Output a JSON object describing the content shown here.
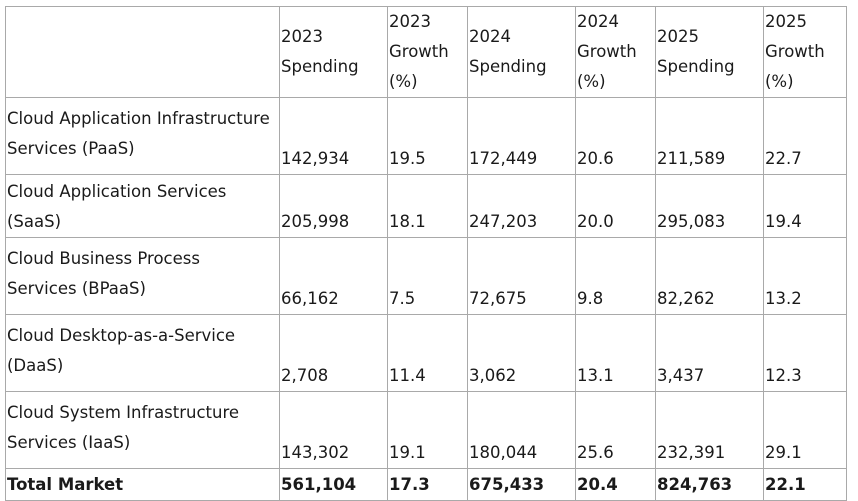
{
  "table": {
    "columns": [
      {
        "lines": [
          "2023",
          "Spending"
        ]
      },
      {
        "lines": [
          "2023",
          "Growth",
          "(%)"
        ]
      },
      {
        "lines": [
          "2024",
          "Spending"
        ]
      },
      {
        "lines": [
          "2024",
          "Growth",
          "(%)"
        ]
      },
      {
        "lines": [
          "2025",
          "Spending"
        ]
      },
      {
        "lines": [
          "2025",
          "Growth",
          "(%)"
        ]
      }
    ],
    "rows": [
      {
        "label_lines": [
          "Cloud Application Infrastructure",
          "Services (PaaS)"
        ],
        "values": [
          "142,934",
          "19.5",
          "172,449",
          "20.6",
          "211,589",
          "22.7"
        ]
      },
      {
        "label_lines": [
          "Cloud Application Services",
          "(SaaS)"
        ],
        "values": [
          "205,998",
          "18.1",
          "247,203",
          "20.0",
          "295,083",
          "19.4"
        ]
      },
      {
        "label_lines": [
          "Cloud Business Process",
          "Services (BPaaS)"
        ],
        "values": [
          "66,162",
          "7.5",
          "72,675",
          "9.8",
          "82,262",
          "13.2"
        ]
      },
      {
        "label_lines": [
          "Cloud Desktop-as-a-Service",
          "(DaaS)"
        ],
        "values": [
          "2,708",
          "11.4",
          "3,062",
          "13.1",
          "3,437",
          "12.3"
        ]
      },
      {
        "label_lines": [
          "Cloud System Infrastructure",
          "Services (IaaS)"
        ],
        "values": [
          "143,302",
          "19.1",
          "180,044",
          "25.6",
          "232,391",
          "29.1"
        ]
      }
    ],
    "total": {
      "label": "Total Market",
      "values": [
        "561,104",
        "17.3",
        "675,433",
        "20.4",
        "824,763",
        "22.1"
      ]
    }
  }
}
